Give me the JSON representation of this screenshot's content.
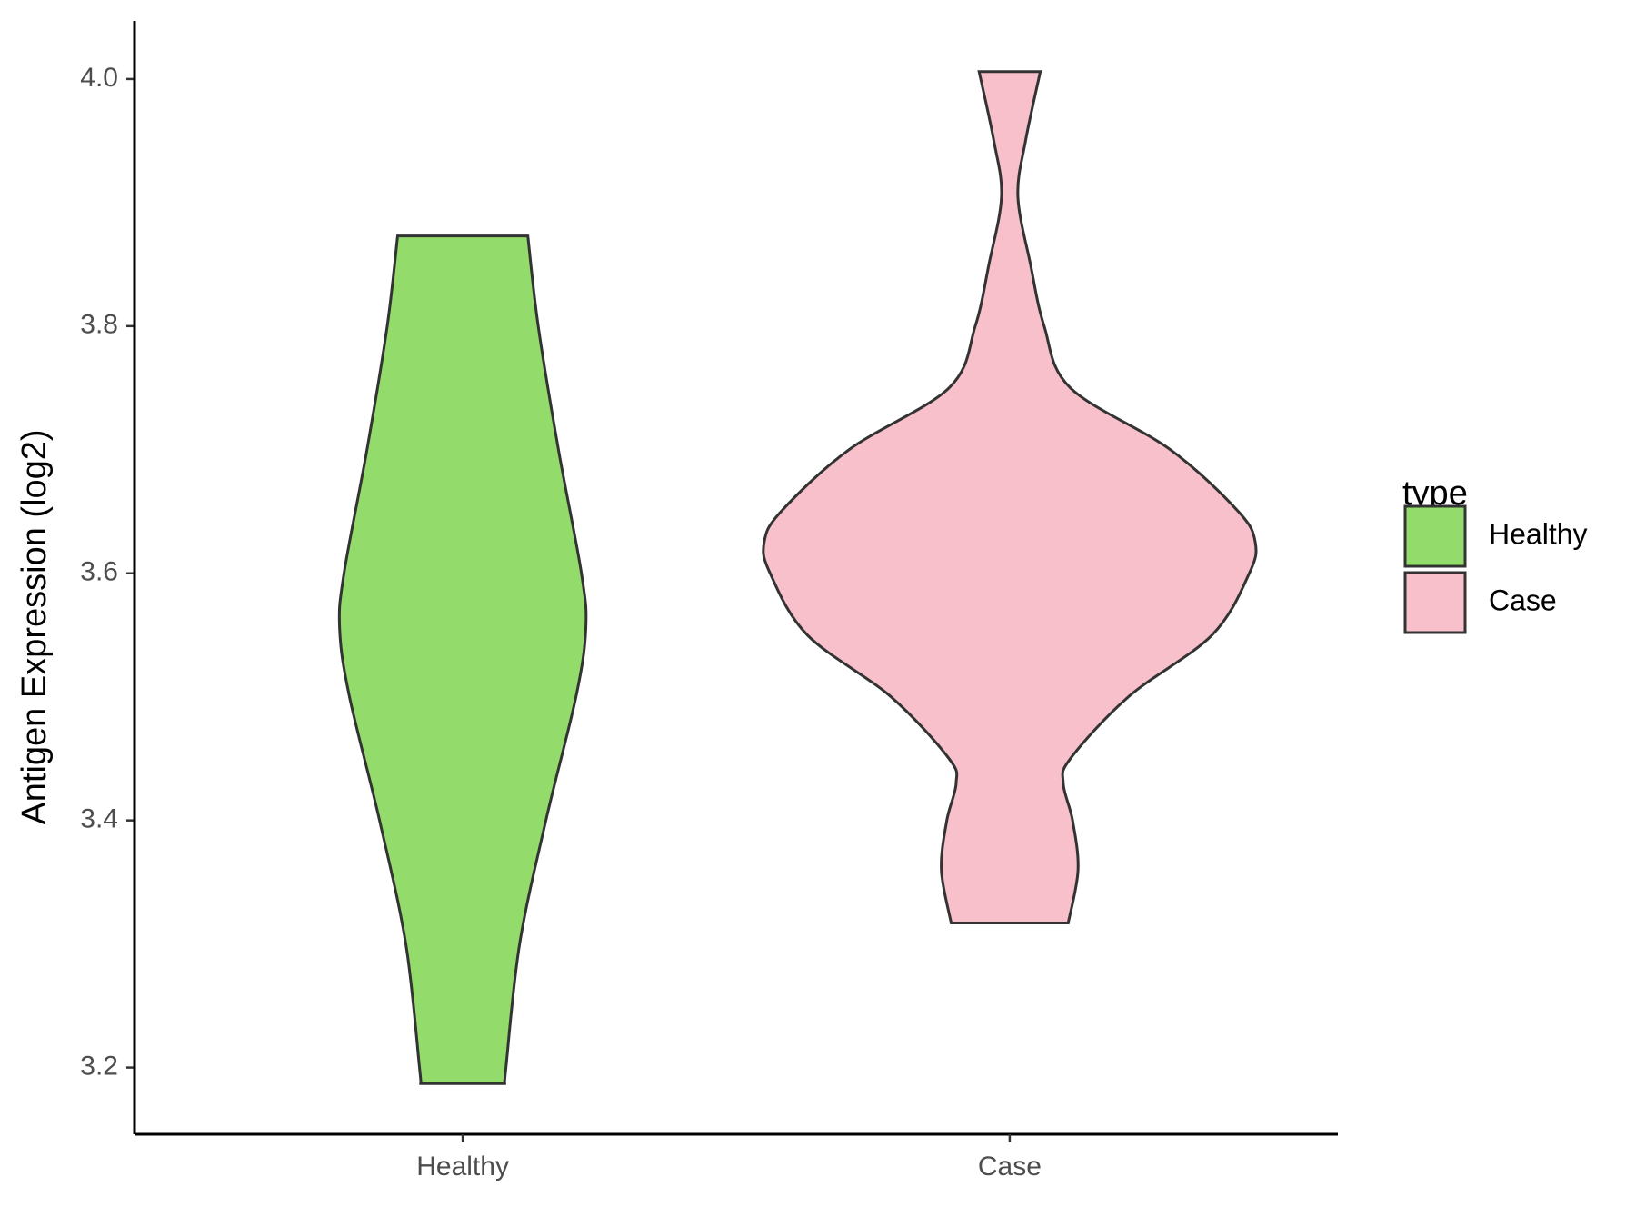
{
  "chart_data": {
    "type": "violin",
    "y_label": "Antigen Expression (log2)",
    "legend_title": "type",
    "legend_position": "right",
    "categories": [
      "Healthy",
      "Case"
    ],
    "ylim": [
      3.146,
      4.047
    ],
    "yticks": [
      {
        "value": 3.2,
        "label": "3.2"
      },
      3.4,
      3.6,
      3.8,
      {
        "value": 4.0,
        "label": "4.0"
      }
    ],
    "grid": false,
    "series": [
      {
        "name": "Healthy",
        "color": "#93dc6b",
        "values": [
          3.873,
          3.8,
          3.7,
          3.6,
          3.555,
          3.5,
          3.4,
          3.3,
          3.2,
          3.187
        ],
        "width": [
          0.119,
          0.138,
          0.175,
          0.217,
          0.225,
          0.207,
          0.152,
          0.104,
          0.079,
          0.077
        ]
      },
      {
        "name": "Case",
        "color": "#f7c0cb",
        "values": [
          4.006,
          3.95,
          3.905,
          3.85,
          3.8,
          3.75,
          3.7,
          3.65,
          3.625,
          3.6,
          3.55,
          3.5,
          3.45,
          3.43,
          3.4,
          3.36,
          3.317
        ],
        "width": [
          0.056,
          0.029,
          0.015,
          0.038,
          0.063,
          0.111,
          0.294,
          0.418,
          0.449,
          0.438,
          0.37,
          0.217,
          0.111,
          0.098,
          0.115,
          0.125,
          0.107
        ]
      }
    ]
  }
}
